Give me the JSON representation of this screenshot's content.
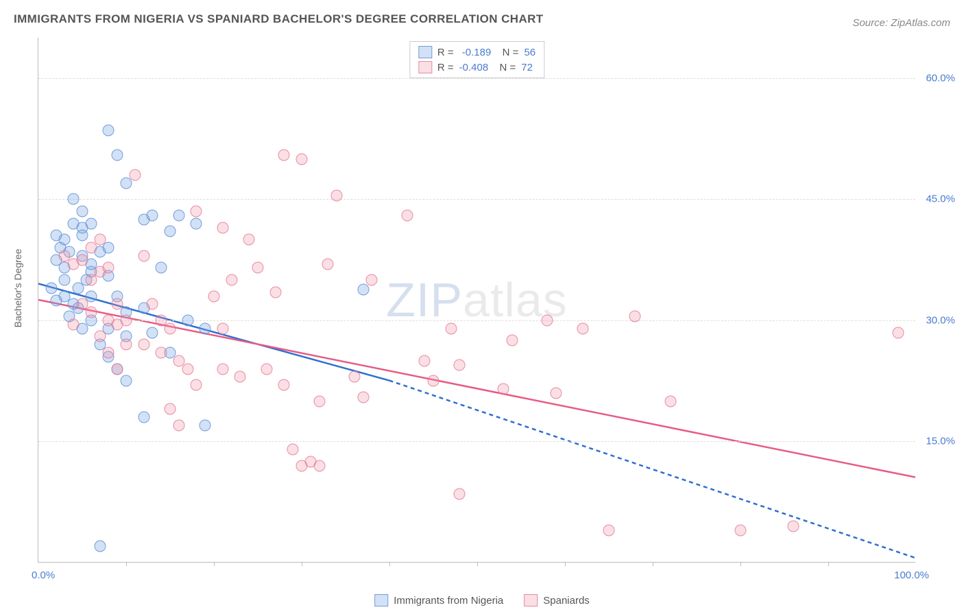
{
  "title": "IMMIGRANTS FROM NIGERIA VS SPANIARD BACHELOR'S DEGREE CORRELATION CHART",
  "source": "Source: ZipAtlas.com",
  "watermark_zip": "ZIP",
  "watermark_atlas": "atlas",
  "yaxis_title": "Bachelor's Degree",
  "xlim": [
    0,
    100
  ],
  "ylim": [
    0,
    65
  ],
  "ytick_positions": [
    15,
    30,
    45,
    60
  ],
  "ytick_labels": [
    "15.0%",
    "30.0%",
    "45.0%",
    "60.0%"
  ],
  "xtick_labels": {
    "left": "0.0%",
    "right": "100.0%"
  },
  "xtick_minor": [
    10,
    20,
    30,
    40,
    50,
    60,
    70,
    80,
    90
  ],
  "grid_color": "#dddddd",
  "axis_color": "#bbbbbb",
  "text_color": "#555555",
  "tick_label_color": "#4a7bd0",
  "background_color": "#ffffff",
  "marker_size": 17,
  "series": [
    {
      "name": "Immigrants from Nigeria",
      "fill": "rgba(125,170,230,0.35)",
      "stroke": "rgba(90,140,210,0.8)",
      "line_color": "#2e6fd0",
      "R": "-0.189",
      "N": "56",
      "trend": {
        "x1": 0,
        "y1": 34.5,
        "x2": 40,
        "y2": 22.5,
        "x2_dash": 100,
        "y2_dash": 0.5
      },
      "points": [
        [
          2,
          40.5
        ],
        [
          2.5,
          39
        ],
        [
          3,
          40
        ],
        [
          3.5,
          38.5
        ],
        [
          2,
          37.5
        ],
        [
          3,
          36.5
        ],
        [
          3,
          35
        ],
        [
          1.5,
          34
        ],
        [
          4,
          42
        ],
        [
          5,
          43.5
        ],
        [
          4,
          45
        ],
        [
          5,
          41.5
        ],
        [
          6,
          42
        ],
        [
          5,
          38
        ],
        [
          6,
          36
        ],
        [
          5.5,
          35
        ],
        [
          6,
          33
        ],
        [
          4.5,
          31.5
        ],
        [
          6,
          30
        ],
        [
          5,
          29
        ],
        [
          3.5,
          30.5
        ],
        [
          8,
          53.5
        ],
        [
          9,
          50.5
        ],
        [
          10,
          47
        ],
        [
          8,
          35.5
        ],
        [
          9,
          33
        ],
        [
          10,
          31
        ],
        [
          8,
          29
        ],
        [
          7,
          27
        ],
        [
          8,
          25.5
        ],
        [
          9,
          24
        ],
        [
          10,
          28
        ],
        [
          12,
          42.5
        ],
        [
          13,
          43
        ],
        [
          15,
          41
        ],
        [
          12,
          31.5
        ],
        [
          13,
          28.5
        ],
        [
          10,
          22.5
        ],
        [
          12,
          18
        ],
        [
          14,
          36.5
        ],
        [
          16,
          43
        ],
        [
          18,
          42
        ],
        [
          17,
          30
        ],
        [
          19,
          29
        ],
        [
          15,
          26
        ],
        [
          19,
          17
        ],
        [
          7,
          2
        ],
        [
          4,
          32
        ],
        [
          6,
          37
        ],
        [
          7,
          38.5
        ],
        [
          3,
          33
        ],
        [
          4.5,
          34
        ],
        [
          2,
          32.5
        ],
        [
          5,
          40.5
        ],
        [
          8,
          39
        ],
        [
          37,
          33.8
        ]
      ]
    },
    {
      "name": "Spaniards",
      "fill": "rgba(240,150,170,0.3)",
      "stroke": "rgba(225,110,140,0.75)",
      "line_color": "#e85b83",
      "R": "-0.408",
      "N": "72",
      "trend": {
        "x1": 0,
        "y1": 32.5,
        "x2": 100,
        "y2": 10.5
      },
      "points": [
        [
          3,
          38
        ],
        [
          4,
          37
        ],
        [
          5,
          37.5
        ],
        [
          6,
          35
        ],
        [
          7,
          36
        ],
        [
          5,
          32
        ],
        [
          6,
          31
        ],
        [
          4,
          29.5
        ],
        [
          7,
          28
        ],
        [
          8,
          30
        ],
        [
          9,
          29.5
        ],
        [
          10,
          27
        ],
        [
          8,
          26
        ],
        [
          9,
          24
        ],
        [
          11,
          48
        ],
        [
          12,
          38
        ],
        [
          13,
          32
        ],
        [
          14,
          30
        ],
        [
          15,
          29
        ],
        [
          16,
          25
        ],
        [
          17,
          24
        ],
        [
          15,
          19
        ],
        [
          18,
          43.5
        ],
        [
          20,
          33
        ],
        [
          21,
          29
        ],
        [
          22,
          35
        ],
        [
          21,
          24
        ],
        [
          23,
          23
        ],
        [
          24,
          40
        ],
        [
          25,
          36.5
        ],
        [
          28,
          50.5
        ],
        [
          27,
          33.5
        ],
        [
          26,
          24
        ],
        [
          28,
          22
        ],
        [
          29,
          14
        ],
        [
          30,
          50
        ],
        [
          31,
          12.5
        ],
        [
          32,
          12
        ],
        [
          32,
          20
        ],
        [
          33,
          37
        ],
        [
          34,
          45.5
        ],
        [
          36,
          23
        ],
        [
          37,
          20.5
        ],
        [
          38,
          35
        ],
        [
          42,
          43
        ],
        [
          44,
          25
        ],
        [
          45,
          22.5
        ],
        [
          47,
          29
        ],
        [
          48,
          24.5
        ],
        [
          48,
          8.5
        ],
        [
          53,
          21.5
        ],
        [
          54,
          27.5
        ],
        [
          58,
          30
        ],
        [
          59,
          21
        ],
        [
          62,
          29
        ],
        [
          65,
          4
        ],
        [
          68,
          30.5
        ],
        [
          72,
          20
        ],
        [
          80,
          4
        ],
        [
          86,
          4.5
        ],
        [
          98,
          28.5
        ],
        [
          6,
          39
        ],
        [
          7,
          40
        ],
        [
          8,
          36.5
        ],
        [
          9,
          32
        ],
        [
          10,
          30
        ],
        [
          12,
          27
        ],
        [
          14,
          26
        ],
        [
          16,
          17
        ],
        [
          18,
          22
        ],
        [
          21,
          41.5
        ],
        [
          30,
          12
        ]
      ]
    }
  ]
}
